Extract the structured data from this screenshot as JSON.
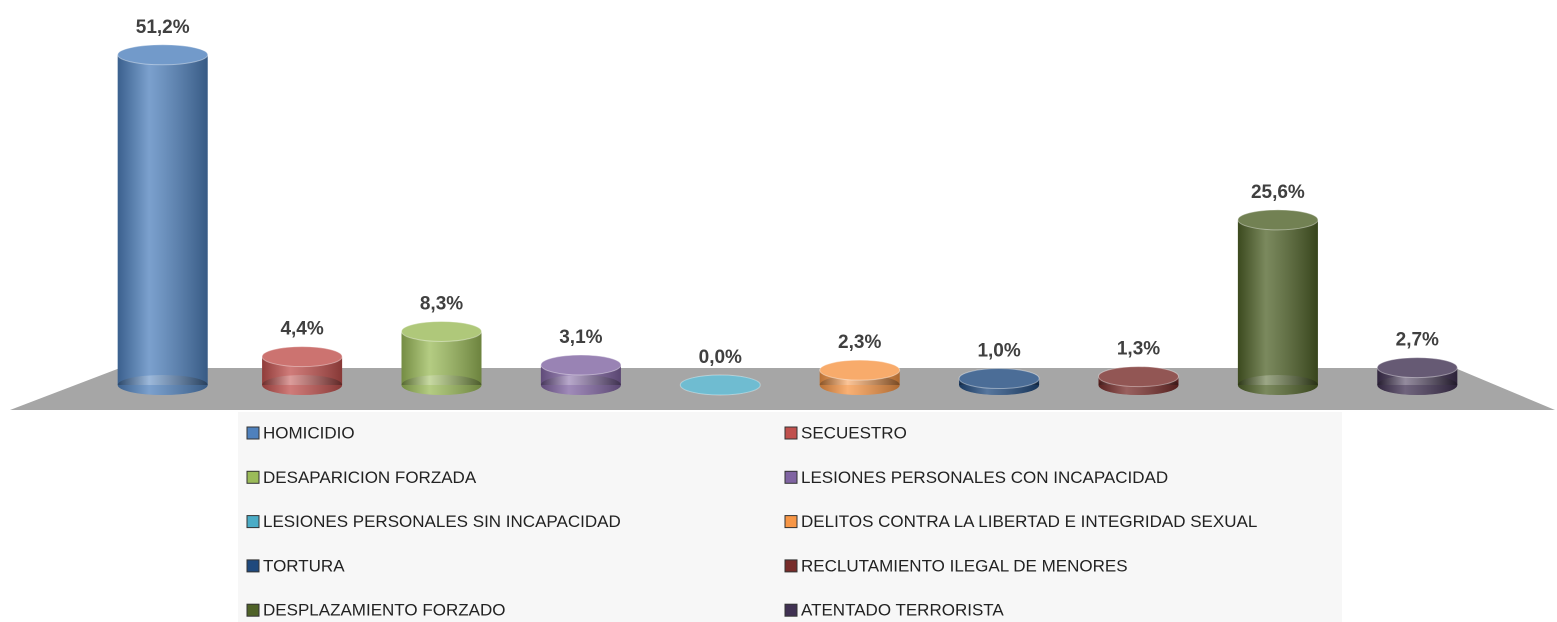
{
  "chart_data": {
    "type": "bar3d",
    "categories": [
      "HOMICIDIO",
      "SECUESTRO",
      "DESAPARICION FORZADA",
      "LESIONES PERSONALES CON INCAPACIDAD",
      "LESIONES PERSONALES SIN INCAPACIDAD",
      "DELITOS CONTRA LA LIBERTAD E INTEGRIDAD SEXUAL",
      "TORTURA",
      "RECLUTAMIENTO ILEGAL DE MENORES",
      "DESPLAZAMIENTO FORZADO",
      "ATENTADO TERRORISTA"
    ],
    "values": [
      51.2,
      4.4,
      8.3,
      3.1,
      0.0,
      2.3,
      1.0,
      1.3,
      25.6,
      2.7
    ],
    "value_labels": [
      "51,2%",
      "4,4%",
      "8,3%",
      "3,1%",
      "0,0%",
      "2,3%",
      "1,0%",
      "1,3%",
      "25,6%",
      "2,7%"
    ],
    "colors": [
      "#4f81bd",
      "#c0504d",
      "#9bbb59",
      "#8064a2",
      "#4bacc6",
      "#f79646",
      "#1f497d",
      "#772c2a",
      "#4f6228",
      "#403152"
    ],
    "legend": "bottom"
  }
}
